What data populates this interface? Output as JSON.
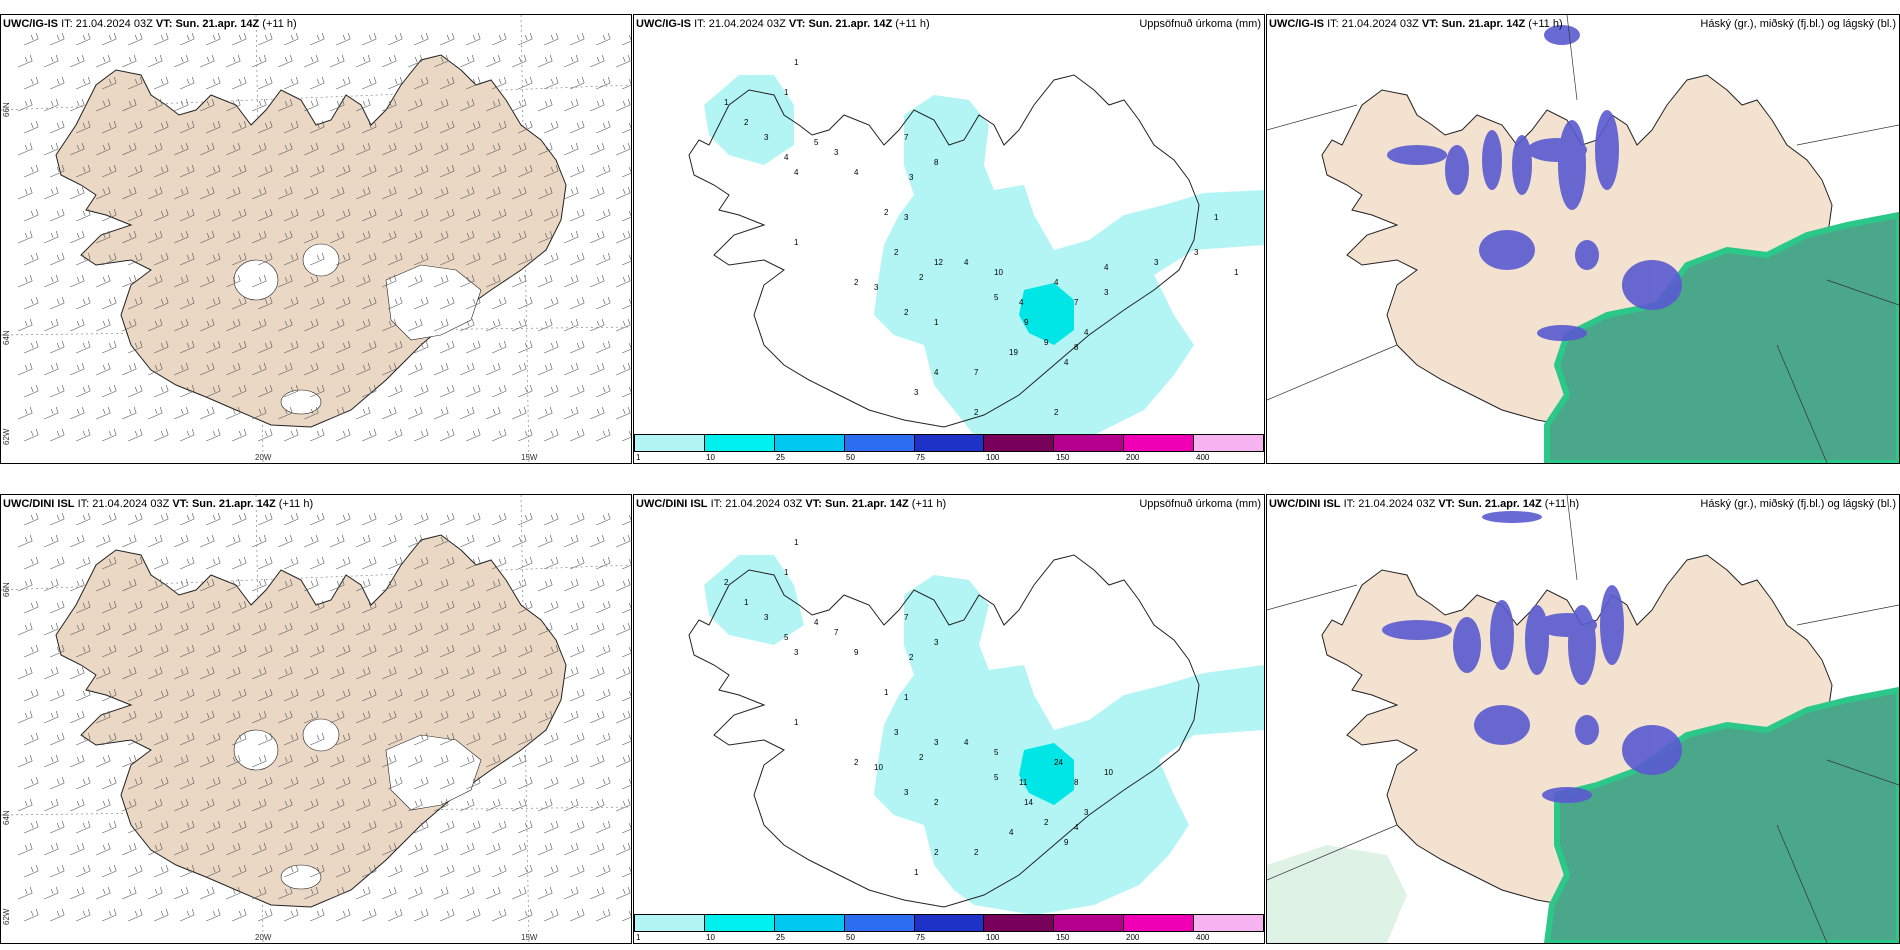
{
  "rows": [
    {
      "model": "UWC/IG-IS",
      "it_label": "IT:",
      "it_value": "21.04.2024 03Z",
      "vt_label": "VT:",
      "vt_value": "Sun. 21.apr. 14Z",
      "lead": "(+11 h)",
      "precip_title": "Uppsöfnuð úrkoma (mm)",
      "cloud_title": "Háský (gr.), miðský (fj.bl.) og lágský (bl.)",
      "lon_labels": [
        "20W",
        "15W"
      ],
      "lat_labels": [
        "66N",
        "64N",
        "62W"
      ],
      "precip_numbers": [
        "1",
        "1",
        "1",
        "2",
        "3",
        "4",
        "5",
        "4",
        "3",
        "4",
        "7",
        "3",
        "8",
        "2",
        "3",
        "2",
        "1",
        "2",
        "3",
        "12",
        "4",
        "2",
        "10",
        "5",
        "4",
        "9",
        "4",
        "7",
        "3",
        "19",
        "9",
        "8",
        "4",
        "4",
        "2",
        "1",
        "4",
        "7",
        "3",
        "2",
        "2",
        "4",
        "3",
        "3",
        "1",
        "1"
      ]
    },
    {
      "model": "UWC/DINI ISL",
      "it_label": "IT:",
      "it_value": "21.04.2024 03Z",
      "vt_label": "VT:",
      "vt_value": "Sun. 21.apr. 14Z",
      "lead": "(+11 h)",
      "precip_title": "Uppsöfnuð úrkoma (mm)",
      "cloud_title": "Háský (gr.), miðský (fj.bl.) og lágský (bl.)",
      "lon_labels": [
        "20W",
        "15W"
      ],
      "lat_labels": [
        "66N",
        "64N",
        "62W"
      ],
      "precip_numbers": [
        "1",
        "1",
        "2",
        "1",
        "3",
        "5",
        "4",
        "3",
        "7",
        "9",
        "7",
        "2",
        "3",
        "1",
        "1",
        "3",
        "1",
        "2",
        "10",
        "3",
        "4",
        "2",
        "5",
        "5",
        "11",
        "14",
        "24",
        "8",
        "10",
        "4",
        "2",
        "4",
        "9",
        "3",
        "3",
        "2",
        "2",
        "2",
        "1"
      ]
    }
  ],
  "colorbar": {
    "ticks": [
      "1",
      "10",
      "25",
      "50",
      "75",
      "100",
      "150",
      "200",
      "400"
    ],
    "colors": [
      "#b3f5f5",
      "#00f0f0",
      "#00c8f0",
      "#2d6ef0",
      "#1e32c8",
      "#78005a",
      "#b4008c",
      "#f000b4",
      "#f5b4f0"
    ]
  },
  "colors": {
    "land": "#f3e2cf",
    "land_wind": "#ead8c5",
    "precip_light": "#b3f5f5",
    "precip_mid": "#00e5e5",
    "cloud_high": "#5a5ad0",
    "cloud_low": "#4aa78a",
    "cloud_low_edge": "#2cc88a"
  }
}
